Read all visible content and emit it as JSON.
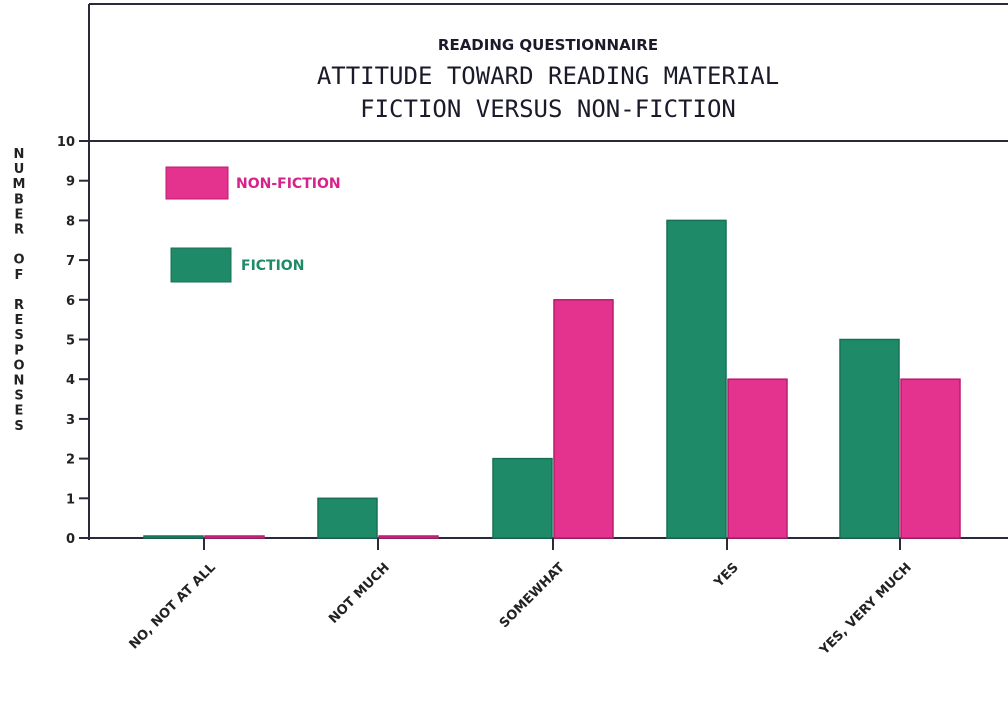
{
  "colors": {
    "fiction": "#1f8a68",
    "fiction_dark": "#177055",
    "nonfiction": "#e3338f",
    "nonfiction_dark": "#b81c6e",
    "fiction_label": "#1f8a68",
    "nonfiction_label": "#d6228a",
    "axis": "#2a2a3a"
  },
  "chart_data": {
    "type": "bar",
    "supertitle": "READING QUESTIONNAIRE",
    "title": "ATTITUDE TOWARD READING MATERIAL",
    "subtitle": "FICTION VERSUS NON-FICTION",
    "ylabel": "NUMBER OF RESPONSES",
    "xlabel": "",
    "ylim": [
      0,
      10
    ],
    "yticks": [
      "0",
      "1",
      "2",
      "3",
      "4",
      "5",
      "6",
      "7",
      "8",
      "9",
      "10"
    ],
    "categories": [
      "NO, NOT AT ALL",
      "NOT MUCH",
      "SOMEWHAT",
      "YES",
      "YES, VERY MUCH"
    ],
    "series": [
      {
        "name": "FICTION",
        "values": [
          0,
          1,
          2,
          8,
          5
        ]
      },
      {
        "name": "NON-FICTION",
        "values": [
          0,
          0,
          6,
          4,
          4
        ]
      }
    ],
    "legend": {
      "placement": "top-left",
      "order": [
        "NON-FICTION",
        "FICTION"
      ]
    },
    "grid": false
  }
}
